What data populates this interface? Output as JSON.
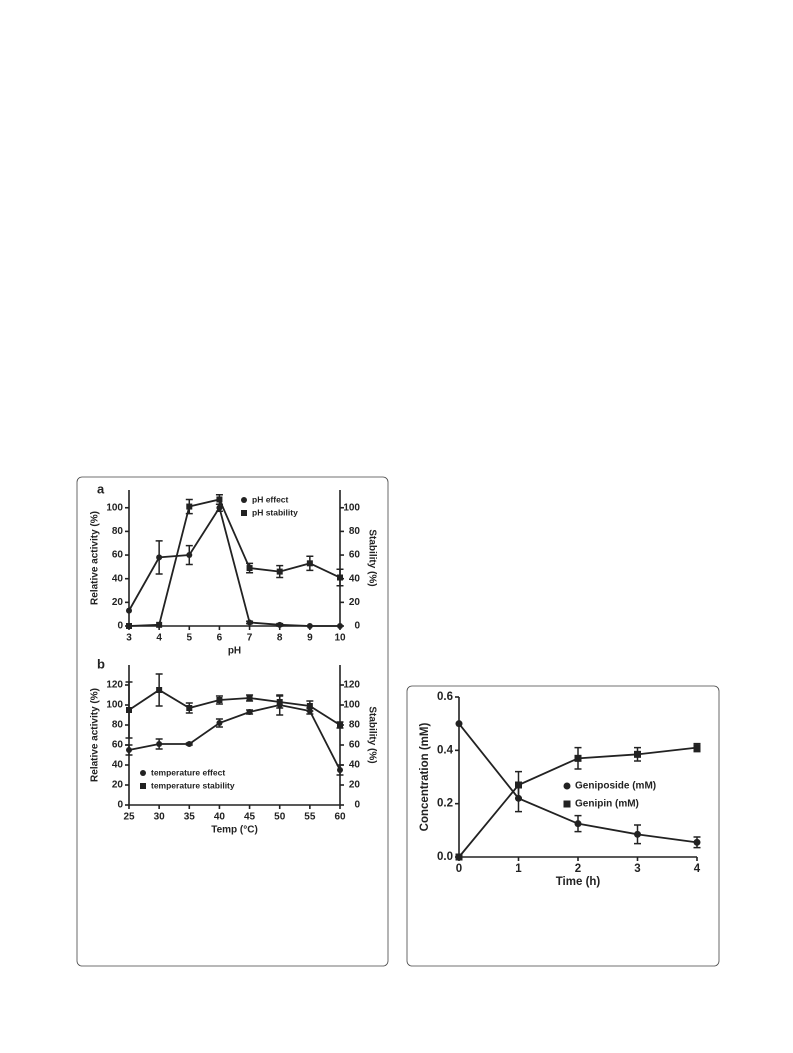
{
  "chart_data": [
    {
      "type": "line",
      "label": "a",
      "x_label": "pH",
      "y_label": "Relative activity (%)",
      "y2_label": "Stability (%)",
      "x": [
        3,
        4,
        5,
        6,
        7,
        8,
        9,
        10
      ],
      "xlim": [
        3,
        10
      ],
      "xticks": [
        3,
        4,
        5,
        6,
        7,
        8,
        9,
        10
      ],
      "ylim": [
        0,
        115
      ],
      "yticks": [
        0,
        20,
        40,
        60,
        80,
        100
      ],
      "y2lim": [
        0,
        115
      ],
      "y2ticks": [
        0,
        20,
        40,
        60,
        80,
        100
      ],
      "legend": "upper right",
      "series": [
        {
          "name": "pH effect",
          "color": "#222222",
          "marker": "circle",
          "values": [
            13,
            58,
            60,
            100,
            3,
            1,
            0,
            0
          ],
          "errors": [
            0,
            14,
            8,
            3,
            1,
            1,
            0,
            0
          ]
        },
        {
          "name": "pH stability",
          "color": "#222222",
          "marker": "square",
          "axis": "y2",
          "values": [
            0,
            1,
            101,
            107,
            49,
            46,
            53,
            41
          ],
          "errors": [
            0,
            0,
            6,
            4,
            4,
            5,
            6,
            7
          ]
        }
      ]
    },
    {
      "type": "line",
      "label": "b",
      "x_label": "Temp (°C)",
      "y_label": "Relative activity (%)",
      "y2_label": "Stability (%)",
      "x": [
        25,
        30,
        35,
        40,
        45,
        50,
        55,
        60
      ],
      "xlim": [
        25,
        60
      ],
      "xticks": [
        25,
        30,
        35,
        40,
        45,
        50,
        55,
        60
      ],
      "ylim": [
        0,
        140
      ],
      "yticks": [
        0,
        20,
        40,
        60,
        80,
        100,
        120
      ],
      "y2lim": [
        0,
        140
      ],
      "y2ticks": [
        0,
        20,
        40,
        60,
        80,
        100,
        120
      ],
      "legend": "lower left",
      "series": [
        {
          "name": "temperature effect",
          "color": "#222222",
          "marker": "circle",
          "values": [
            55,
            61,
            61,
            82,
            93,
            100,
            94,
            35
          ],
          "errors": [
            5,
            5,
            1,
            4,
            2,
            10,
            3,
            5
          ]
        },
        {
          "name": "temperature stability",
          "color": "#222222",
          "marker": "square",
          "axis": "y2",
          "values": [
            95,
            115,
            97,
            105,
            107,
            103,
            99,
            80
          ],
          "errors": [
            28,
            16,
            5,
            4,
            3,
            6,
            5,
            3
          ]
        }
      ]
    },
    {
      "type": "line",
      "x_label": "Time (h)",
      "y_label": "Concentration (mM)",
      "x": [
        0,
        1,
        2,
        3,
        4
      ],
      "xlim": [
        0,
        4
      ],
      "xticks": [
        0,
        1,
        2,
        3,
        4
      ],
      "ylim": [
        0,
        0.6
      ],
      "yticks": [
        {
          "value": 0,
          "label": "0.0"
        },
        0.2,
        0.4,
        0.6
      ],
      "legend": "center right",
      "series": [
        {
          "name": "Geniposide (mM)",
          "color": "#222222",
          "marker": "circle",
          "values": [
            0.5,
            0.22,
            0.125,
            0.085,
            0.055
          ],
          "errors": [
            0,
            0.05,
            0.03,
            0.035,
            0.02
          ]
        },
        {
          "name": "Genipin (mM)",
          "color": "#222222",
          "marker": "square",
          "values": [
            0,
            0.27,
            0.37,
            0.385,
            0.41
          ],
          "errors": [
            0,
            0.05,
            0.04,
            0.025,
            0.015
          ]
        }
      ]
    }
  ]
}
